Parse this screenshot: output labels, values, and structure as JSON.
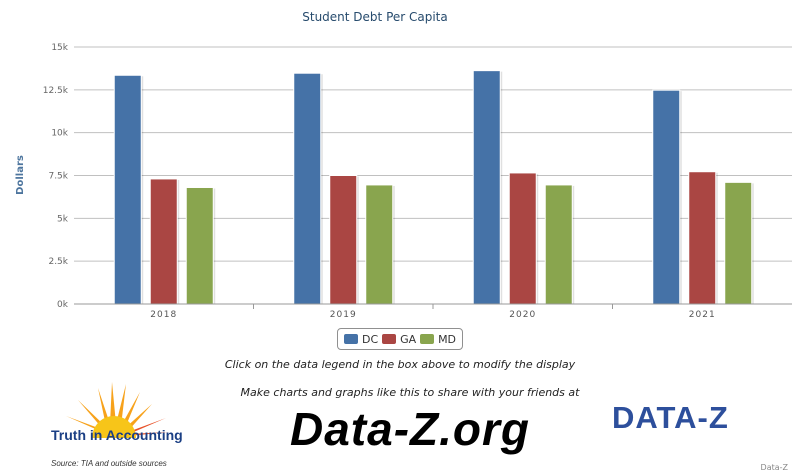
{
  "chart_data": {
    "type": "bar",
    "title": "Student Debt Per Capita",
    "ylabel": "Dollars",
    "xlabel": "",
    "categories": [
      "2018",
      "2019",
      "2020",
      "2021"
    ],
    "ylim": [
      0,
      15000
    ],
    "yticks": [
      0,
      2500,
      5000,
      7500,
      10000,
      12500,
      15000
    ],
    "ytick_labels": [
      "0k",
      "2.5k",
      "5k",
      "7.5k",
      "10k",
      "12.5k",
      "15k"
    ],
    "grid": true,
    "legend_position": "bottom-center",
    "series": [
      {
        "name": "DC",
        "color": "#4572a7",
        "values": [
          13350,
          13470,
          13620,
          12480
        ]
      },
      {
        "name": "GA",
        "color": "#aa4643",
        "values": [
          7300,
          7500,
          7650,
          7720
        ]
      },
      {
        "name": "MD",
        "color": "#89a54e",
        "values": [
          6800,
          6950,
          6950,
          7100
        ]
      }
    ]
  },
  "legend": {
    "items": [
      {
        "label": "DC",
        "color": "#4572a7"
      },
      {
        "label": "GA",
        "color": "#aa4643"
      },
      {
        "label": "MD",
        "color": "#89a54e"
      }
    ]
  },
  "footer": {
    "instruction": "Click on the data legend in the box above to modify the display",
    "promo": "Make charts and graphs like this to share with your friends at",
    "site": "Data-Z.org",
    "tia_name": "Truth in Accounting",
    "source": "Source: TIA and outside sources",
    "dz_logo_text": "DATA-Z",
    "credit": "Data-Z"
  }
}
